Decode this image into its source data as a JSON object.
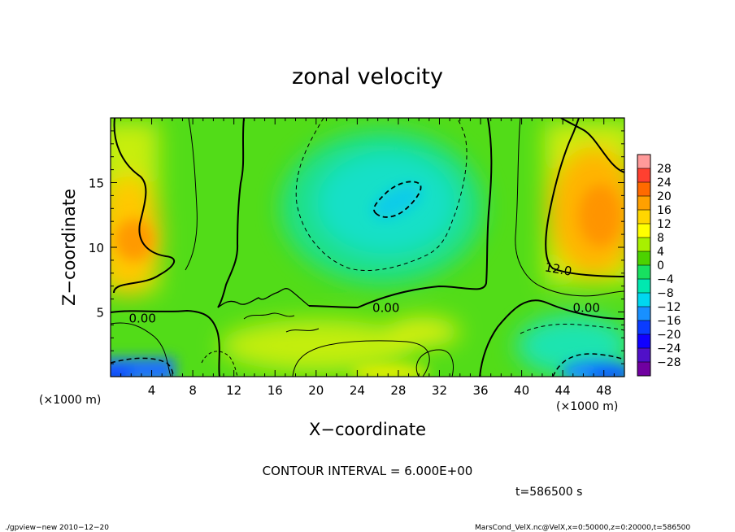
{
  "chart_data": {
    "type": "heatmap",
    "title": "zonal velocity",
    "xlabel": "X−coordinate",
    "ylabel": "Z−coordinate",
    "x_unit_left": "(×1000 m)",
    "x_unit_right": "(×1000 m)",
    "xlim": [
      0,
      50
    ],
    "ylim": [
      0,
      20
    ],
    "x_ticks": [
      4,
      8,
      12,
      16,
      20,
      24,
      28,
      32,
      36,
      40,
      44,
      48
    ],
    "y_ticks": [
      5,
      10,
      15
    ],
    "colorbar": {
      "labels": [
        28,
        24,
        20,
        16,
        12,
        8,
        4,
        0,
        -4,
        -8,
        -12,
        -16,
        -20,
        -24,
        -28
      ],
      "label_texts": [
        "28",
        "24",
        "20",
        "16",
        "12",
        "8",
        "4",
        "0",
        "−4",
        "−8",
        "−12",
        "−16",
        "−20",
        "−24",
        "−28"
      ],
      "colors": [
        "#ff9a9a",
        "#ff4030",
        "#ff6a00",
        "#ffa000",
        "#ffd600",
        "#ffff00",
        "#a8f000",
        "#4cd200",
        "#18e060",
        "#00e8b0",
        "#00d8f0",
        "#1890ff",
        "#0a3cff",
        "#1000ff",
        "#5010c8",
        "#7000a0"
      ]
    },
    "contour_labels": [
      {
        "text": "0.00",
        "x": 3.1,
        "y": 4.5
      },
      {
        "text": "0.00",
        "x": 26.8,
        "y": 5.3
      },
      {
        "text": "0.00",
        "x": 46.3,
        "y": 5.3
      },
      {
        "text": "12.0",
        "x": 43.5,
        "y": 8.3
      }
    ],
    "contour_interval_text": "CONTOUR INTERVAL = 6.000E+00",
    "time_text": "t=586500 s",
    "footer_left": "./gpview−new  2010−12−20",
    "footer_right": "MarsCond_VelX.nc@VelX,x=0:50000,z=0:20000,t=586500"
  }
}
